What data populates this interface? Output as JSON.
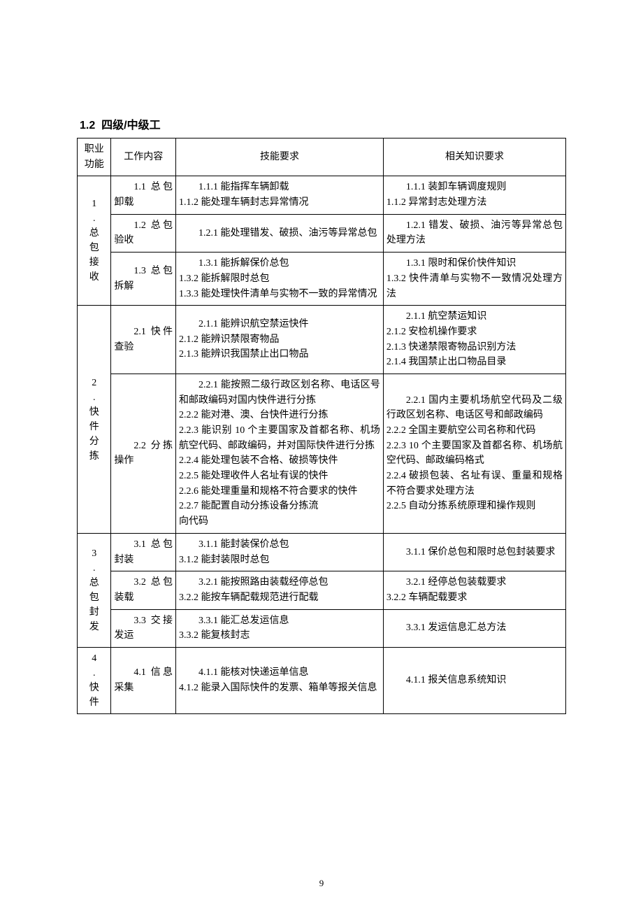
{
  "section_number": "1.2",
  "section_title": "四级/中级工",
  "page_number": "9",
  "columns": {
    "func": "职业功能",
    "work": "工作内容",
    "skill": "技能要求",
    "know": "相关知识要求"
  },
  "funcs": [
    {
      "label": "1.总包接收",
      "rows": [
        {
          "work": "1.1 总包卸载",
          "skill": "1.1.1 能指挥车辆卸载<br>1.1.2 能处理车辆封志异常情况",
          "know": "1.1.1 装卸车辆调度规则<br>1.1.2 异常封志处理方法"
        },
        {
          "work": "1.2 总包验收",
          "skill": "1.2.1 能处理错发、破损、油污等异常总包",
          "know": "1.2.1 错发、破损、油污等异常总包处理方法"
        },
        {
          "work": "1.3 总包拆解",
          "skill": "1.3.1 能拆解保价总包<br>1.3.2 能拆解限时总包<br>1.3.3 能处理快件清单与实物不一致的异常情况",
          "know": "1.3.1 限时和保价快件知识<br>1.3.2 快件清单与实物不一致情况处理方法"
        }
      ]
    },
    {
      "label": "2.快件分拣",
      "rows": [
        {
          "work": "2.1 快件查验",
          "skill": "2.1.1 能辨识航空禁运快件<br>2.1.2 能辨识禁限寄物品<br>2.1.3 能辨识我国禁止出口物品",
          "know": "2.1.1 航空禁运知识<br>2.1.2 安检机操作要求<br>2.1.3 快递禁限寄物品识别方法<br>2.1.4 我国禁止出口物品目录"
        },
        {
          "work": "2.2 分拣操作",
          "skill": "2.2.1 能按照二级行政区划名称、电话区号和邮政编码对国内快件进行分拣<br>2.2.2 能对港、澳、台快件进行分拣<br>2.2.3 能识别 10 个主要国家及首都名称、机场航空代码、邮政编码，并对国际快件进行分拣<br>2.2.4 能处理包装不合格、破损等快件<br>2.2.5 能处理收件人名址有误的快件<br>2.2.6 能处理重量和规格不符合要求的快件<br>2.2.7 能配置自动分拣设备分拣流<br>向代码",
          "know": "2.2.1 国内主要机场航空代码及二级行政区划名称、电话区号和邮政编码<br>2.2.2 全国主要航空公司名称和代码<br>2.2.3 10 个主要国家及首都名称、机场航空代码、邮政编码格式<br>2.2.4 破损包装、名址有误、重量和规格不符合要求处理方法<br>2.2.5 自动分拣系统原理和操作规则"
        }
      ]
    },
    {
      "label": "3.总包封发",
      "rows": [
        {
          "work": "3.1 总包封装",
          "skill": "3.1.1 能封装保价总包<br>3.1.2 能封装限时总包",
          "know": "3.1.1 保价总包和限时总包封装要求"
        },
        {
          "work": "3.2 总包装载",
          "skill": "3.2.1 能按照路由装载经停总包<br>3.2.2 能按车辆配载规范进行配载",
          "know": "3.2.1 经停总包装载要求<br>3.2.2 车辆配载要求"
        },
        {
          "work": "3.3 交接发运",
          "skill": "3.3.1 能汇总发运信息<br>3.3.2 能复核封志",
          "know": "3.3.1 发运信息汇总方法"
        }
      ]
    },
    {
      "label": "4.快件",
      "rows": [
        {
          "work": "4.1 信息采集",
          "skill": "4.1.1 能核对快递运单信息<br>4.1.2 能录入国际快件的发票、箱单等报关信息",
          "know": "4.1.1 报关信息系统知识"
        }
      ]
    }
  ]
}
